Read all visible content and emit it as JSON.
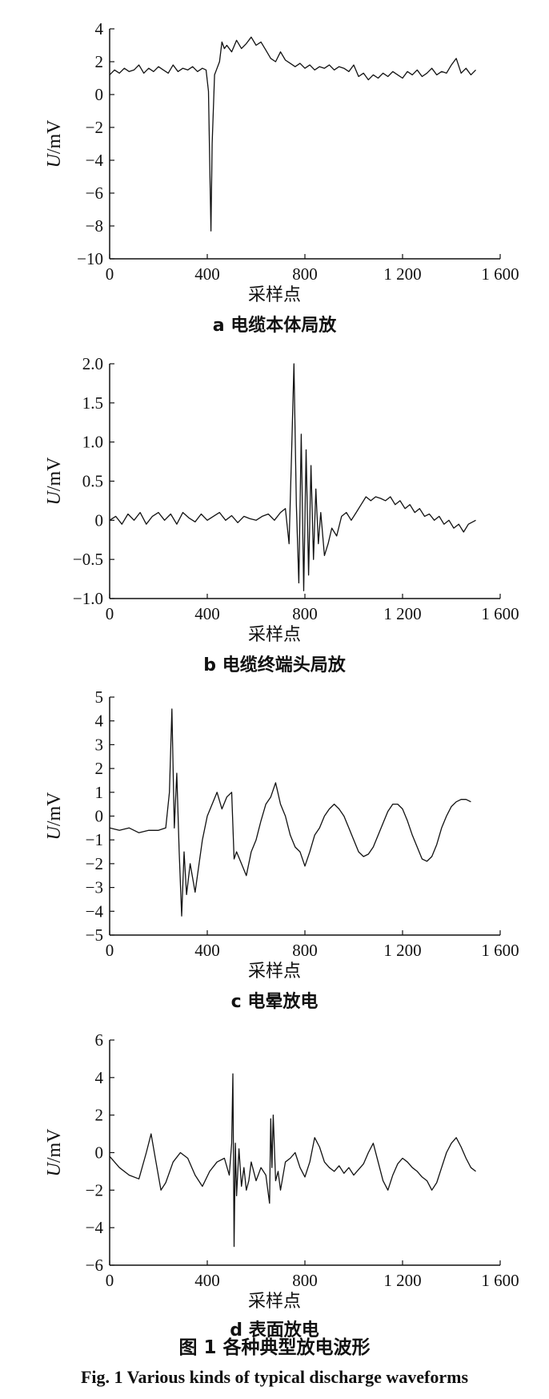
{
  "figure": {
    "caption_cn": "图 1    各种典型放电波形",
    "caption_en": "Fig. 1    Various kinds of typical discharge waveforms"
  },
  "chart_data": [
    {
      "type": "line",
      "subcaption": "a 电缆本体局放",
      "xlabel": "采样点",
      "ylabel": "U/mV",
      "xlim": [
        0,
        1600
      ],
      "ylim": [
        -10,
        4
      ],
      "xticks": [
        0,
        400,
        800,
        1200,
        1600
      ],
      "xtick_labels": [
        "0",
        "400",
        "800",
        "1 200",
        "1 600"
      ],
      "yticks": [
        4,
        2,
        0,
        -2,
        -4,
        -6,
        -8,
        -10
      ],
      "ytick_labels": [
        "4",
        "2",
        "0",
        "−2",
        "−4",
        "−6",
        "−8",
        "−10"
      ],
      "x": [
        0,
        20,
        40,
        60,
        80,
        100,
        120,
        140,
        160,
        180,
        200,
        220,
        240,
        260,
        280,
        300,
        320,
        340,
        360,
        380,
        395,
        405,
        410,
        415,
        420,
        430,
        440,
        450,
        460,
        470,
        480,
        500,
        520,
        540,
        560,
        580,
        600,
        620,
        640,
        660,
        680,
        700,
        720,
        740,
        760,
        780,
        800,
        820,
        840,
        860,
        880,
        900,
        920,
        940,
        960,
        980,
        1000,
        1020,
        1040,
        1060,
        1080,
        1100,
        1120,
        1140,
        1160,
        1180,
        1200,
        1220,
        1240,
        1260,
        1280,
        1300,
        1320,
        1340,
        1360,
        1380,
        1400,
        1420,
        1440,
        1460,
        1480,
        1500
      ],
      "y": [
        1.2,
        1.5,
        1.3,
        1.6,
        1.4,
        1.5,
        1.8,
        1.3,
        1.6,
        1.4,
        1.7,
        1.5,
        1.3,
        1.8,
        1.4,
        1.6,
        1.5,
        1.7,
        1.4,
        1.6,
        1.5,
        0.2,
        -4.0,
        -8.3,
        -3.0,
        1.2,
        1.6,
        2.0,
        3.2,
        2.8,
        3.0,
        2.6,
        3.3,
        2.8,
        3.1,
        3.5,
        3.0,
        3.2,
        2.7,
        2.2,
        2.0,
        2.6,
        2.1,
        1.9,
        1.7,
        1.9,
        1.6,
        1.8,
        1.5,
        1.7,
        1.6,
        1.8,
        1.5,
        1.7,
        1.6,
        1.4,
        1.8,
        1.1,
        1.3,
        0.9,
        1.2,
        1.0,
        1.3,
        1.1,
        1.4,
        1.2,
        1.0,
        1.4,
        1.2,
        1.5,
        1.1,
        1.3,
        1.6,
        1.2,
        1.4,
        1.3,
        1.8,
        2.2,
        1.3,
        1.6,
        1.2,
        1.5
      ]
    },
    {
      "type": "line",
      "subcaption": "b 电缆终端头局放",
      "xlabel": "采样点",
      "ylabel": "U/mV",
      "xlim": [
        0,
        1600
      ],
      "ylim": [
        -1.0,
        2.0
      ],
      "xticks": [
        0,
        400,
        800,
        1200,
        1600
      ],
      "xtick_labels": [
        "0",
        "400",
        "800",
        "1 200",
        "1 600"
      ],
      "yticks": [
        2.0,
        1.5,
        1.0,
        0.5,
        0,
        -0.5,
        -1.0
      ],
      "ytick_labels": [
        "2.0",
        "1.5",
        "1.0",
        "0.5",
        "0",
        "−0.5",
        "−1.0"
      ],
      "x": [
        0,
        25,
        50,
        75,
        100,
        125,
        150,
        175,
        200,
        225,
        250,
        275,
        300,
        325,
        350,
        375,
        400,
        425,
        450,
        475,
        500,
        525,
        550,
        575,
        600,
        625,
        650,
        675,
        700,
        720,
        735,
        745,
        755,
        765,
        775,
        785,
        795,
        805,
        815,
        825,
        835,
        845,
        855,
        865,
        880,
        895,
        910,
        930,
        950,
        970,
        990,
        1010,
        1030,
        1050,
        1070,
        1090,
        1110,
        1130,
        1150,
        1170,
        1190,
        1210,
        1230,
        1250,
        1270,
        1290,
        1310,
        1330,
        1350,
        1370,
        1390,
        1410,
        1430,
        1450,
        1470,
        1500
      ],
      "y": [
        0.0,
        0.05,
        -0.05,
        0.08,
        0.0,
        0.1,
        -0.05,
        0.05,
        0.1,
        0.0,
        0.08,
        -0.05,
        0.1,
        0.03,
        -0.02,
        0.08,
        0.0,
        0.05,
        0.1,
        0.0,
        0.06,
        -0.03,
        0.05,
        0.02,
        0.0,
        0.05,
        0.08,
        0.0,
        0.1,
        0.15,
        -0.3,
        0.8,
        2.0,
        0.2,
        -0.8,
        1.1,
        -0.9,
        0.9,
        -0.7,
        0.7,
        -0.5,
        0.4,
        -0.3,
        0.1,
        -0.45,
        -0.3,
        -0.1,
        -0.2,
        0.05,
        0.1,
        0.0,
        0.1,
        0.2,
        0.3,
        0.25,
        0.3,
        0.28,
        0.25,
        0.3,
        0.2,
        0.25,
        0.15,
        0.2,
        0.1,
        0.15,
        0.05,
        0.08,
        0.0,
        0.05,
        -0.05,
        0.0,
        -0.1,
        -0.05,
        -0.15,
        -0.05,
        0.0
      ]
    },
    {
      "type": "line",
      "subcaption": "c 电晕放电",
      "xlabel": "采样点",
      "ylabel": "U/mV",
      "xlim": [
        0,
        1600
      ],
      "ylim": [
        -5,
        5
      ],
      "xticks": [
        0,
        400,
        800,
        1200,
        1600
      ],
      "xtick_labels": [
        "0",
        "400",
        "800",
        "1 200",
        "1 600"
      ],
      "yticks": [
        5,
        4,
        3,
        2,
        1,
        0,
        -1,
        -2,
        -3,
        -4,
        -5
      ],
      "ytick_labels": [
        "5",
        "4",
        "3",
        "2",
        "1",
        "0",
        "−1",
        "−2",
        "−3",
        "−4",
        "−5"
      ],
      "x": [
        0,
        40,
        80,
        120,
        160,
        200,
        230,
        245,
        255,
        265,
        275,
        285,
        295,
        305,
        315,
        330,
        350,
        380,
        400,
        420,
        440,
        460,
        480,
        500,
        510,
        520,
        540,
        560,
        580,
        600,
        620,
        640,
        660,
        680,
        700,
        720,
        740,
        760,
        780,
        800,
        820,
        840,
        860,
        880,
        900,
        920,
        940,
        960,
        980,
        1000,
        1020,
        1040,
        1060,
        1080,
        1100,
        1120,
        1140,
        1160,
        1180,
        1200,
        1220,
        1240,
        1260,
        1280,
        1300,
        1320,
        1340,
        1360,
        1380,
        1400,
        1420,
        1440,
        1460,
        1480
      ],
      "y": [
        -0.5,
        -0.6,
        -0.5,
        -0.7,
        -0.6,
        -0.6,
        -0.5,
        1.0,
        4.5,
        -0.5,
        1.8,
        -1.5,
        -4.2,
        -1.5,
        -3.3,
        -2.0,
        -3.2,
        -1.0,
        0.0,
        0.5,
        1.0,
        0.3,
        0.8,
        1.0,
        -1.8,
        -1.5,
        -2.0,
        -2.5,
        -1.5,
        -1.0,
        -0.2,
        0.5,
        0.8,
        1.4,
        0.5,
        0.0,
        -0.8,
        -1.3,
        -1.5,
        -2.1,
        -1.5,
        -0.8,
        -0.5,
        0.0,
        0.3,
        0.5,
        0.3,
        0.0,
        -0.5,
        -1.0,
        -1.5,
        -1.7,
        -1.6,
        -1.3,
        -0.8,
        -0.3,
        0.2,
        0.5,
        0.5,
        0.3,
        -0.2,
        -0.8,
        -1.3,
        -1.8,
        -1.9,
        -1.7,
        -1.2,
        -0.5,
        0.0,
        0.4,
        0.6,
        0.7,
        0.7,
        0.6
      ]
    },
    {
      "type": "line",
      "subcaption": "d 表面放电",
      "xlabel": "采样点",
      "ylabel": "U/mV",
      "xlim": [
        0,
        1600
      ],
      "ylim": [
        -6,
        6
      ],
      "xticks": [
        0,
        400,
        800,
        1200,
        1600
      ],
      "xtick_labels": [
        "0",
        "400",
        "800",
        "1 200",
        "1 600"
      ],
      "yticks": [
        6,
        4,
        2,
        0,
        -2,
        -4,
        -6
      ],
      "ytick_labels": [
        "6",
        "4",
        "2",
        "0",
        "−2",
        "−4",
        "−6"
      ],
      "x": [
        0,
        40,
        80,
        120,
        150,
        170,
        190,
        210,
        230,
        260,
        290,
        320,
        350,
        380,
        410,
        440,
        470,
        490,
        500,
        505,
        510,
        515,
        520,
        530,
        540,
        550,
        560,
        570,
        580,
        600,
        620,
        640,
        655,
        660,
        665,
        670,
        680,
        690,
        700,
        720,
        740,
        760,
        780,
        800,
        820,
        840,
        860,
        880,
        900,
        920,
        940,
        960,
        980,
        1000,
        1020,
        1040,
        1060,
        1080,
        1100,
        1120,
        1140,
        1160,
        1180,
        1200,
        1220,
        1240,
        1260,
        1280,
        1300,
        1320,
        1340,
        1360,
        1380,
        1400,
        1420,
        1440,
        1460,
        1480,
        1500
      ],
      "y": [
        -0.2,
        -0.8,
        -1.2,
        -1.4,
        0.0,
        1.0,
        -0.5,
        -2.0,
        -1.6,
        -0.5,
        0.0,
        -0.3,
        -1.2,
        -1.8,
        -1.0,
        -0.5,
        -0.3,
        -1.2,
        0.5,
        4.2,
        -5.0,
        0.5,
        -2.3,
        0.2,
        -1.8,
        -0.8,
        -2.0,
        -1.5,
        -0.5,
        -1.5,
        -0.8,
        -1.2,
        -2.7,
        1.8,
        -0.8,
        2.0,
        -1.5,
        -1.0,
        -2.0,
        -0.5,
        -0.3,
        0.0,
        -0.8,
        -1.3,
        -0.5,
        0.8,
        0.3,
        -0.5,
        -0.8,
        -1.0,
        -0.7,
        -1.1,
        -0.8,
        -1.2,
        -0.9,
        -0.6,
        0.0,
        0.5,
        -0.5,
        -1.5,
        -2.0,
        -1.2,
        -0.6,
        -0.3,
        -0.5,
        -0.8,
        -1.0,
        -1.3,
        -1.5,
        -2.0,
        -1.6,
        -0.8,
        0.0,
        0.5,
        0.8,
        0.3,
        -0.3,
        -0.8,
        -1.0
      ]
    }
  ]
}
